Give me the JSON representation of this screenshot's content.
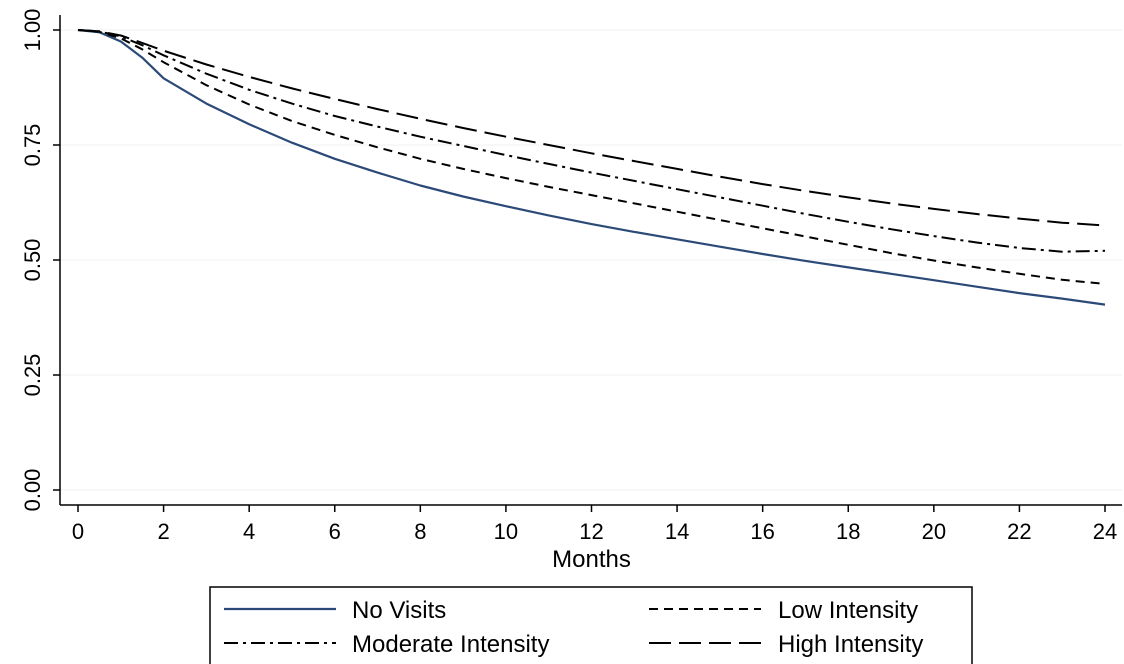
{
  "chart_data": {
    "type": "line",
    "xlabel": "Months",
    "ylabel": "",
    "xlim": [
      0,
      24
    ],
    "ylim": [
      0,
      1
    ],
    "xticks": [
      "0",
      "2",
      "4",
      "6",
      "8",
      "10",
      "12",
      "14",
      "16",
      "18",
      "20",
      "22",
      "24"
    ],
    "yticks": [
      "0.00",
      "0.25",
      "0.50",
      "0.75",
      "1.00"
    ],
    "grid": true,
    "legend_position": "bottom",
    "x": [
      0,
      0.5,
      1,
      1.5,
      2,
      3,
      4,
      5,
      6,
      7,
      8,
      9,
      10,
      11,
      12,
      13,
      14,
      15,
      16,
      17,
      18,
      19,
      20,
      21,
      22,
      23,
      24
    ],
    "series": [
      {
        "name": "No Visits",
        "style": "solid",
        "color": "#2c4a78",
        "values": [
          1.0,
          0.995,
          0.975,
          0.94,
          0.895,
          0.84,
          0.795,
          0.755,
          0.72,
          0.69,
          0.662,
          0.638,
          0.617,
          0.597,
          0.578,
          0.561,
          0.545,
          0.529,
          0.513,
          0.498,
          0.484,
          0.47,
          0.456,
          0.442,
          0.428,
          0.416,
          0.403
        ]
      },
      {
        "name": "Low Intensity",
        "style": "short-dash",
        "color": "#000000",
        "values": [
          1.0,
          0.996,
          0.982,
          0.958,
          0.93,
          0.88,
          0.838,
          0.802,
          0.772,
          0.745,
          0.72,
          0.698,
          0.678,
          0.659,
          0.641,
          0.623,
          0.605,
          0.587,
          0.569,
          0.551,
          0.533,
          0.515,
          0.499,
          0.484,
          0.47,
          0.457,
          0.448
        ]
      },
      {
        "name": "Moderate Intensity",
        "style": "dash-dot",
        "color": "#000000",
        "values": [
          1.0,
          0.997,
          0.986,
          0.967,
          0.945,
          0.905,
          0.87,
          0.84,
          0.813,
          0.79,
          0.768,
          0.748,
          0.728,
          0.709,
          0.69,
          0.672,
          0.654,
          0.636,
          0.618,
          0.6,
          0.583,
          0.567,
          0.552,
          0.538,
          0.526,
          0.518,
          0.52
        ]
      },
      {
        "name": "High Intensity",
        "style": "long-dash",
        "color": "#000000",
        "values": [
          1.0,
          0.997,
          0.988,
          0.972,
          0.955,
          0.925,
          0.898,
          0.873,
          0.85,
          0.828,
          0.807,
          0.787,
          0.768,
          0.75,
          0.732,
          0.715,
          0.698,
          0.681,
          0.665,
          0.65,
          0.636,
          0.623,
          0.611,
          0.6,
          0.59,
          0.581,
          0.575
        ]
      }
    ]
  }
}
